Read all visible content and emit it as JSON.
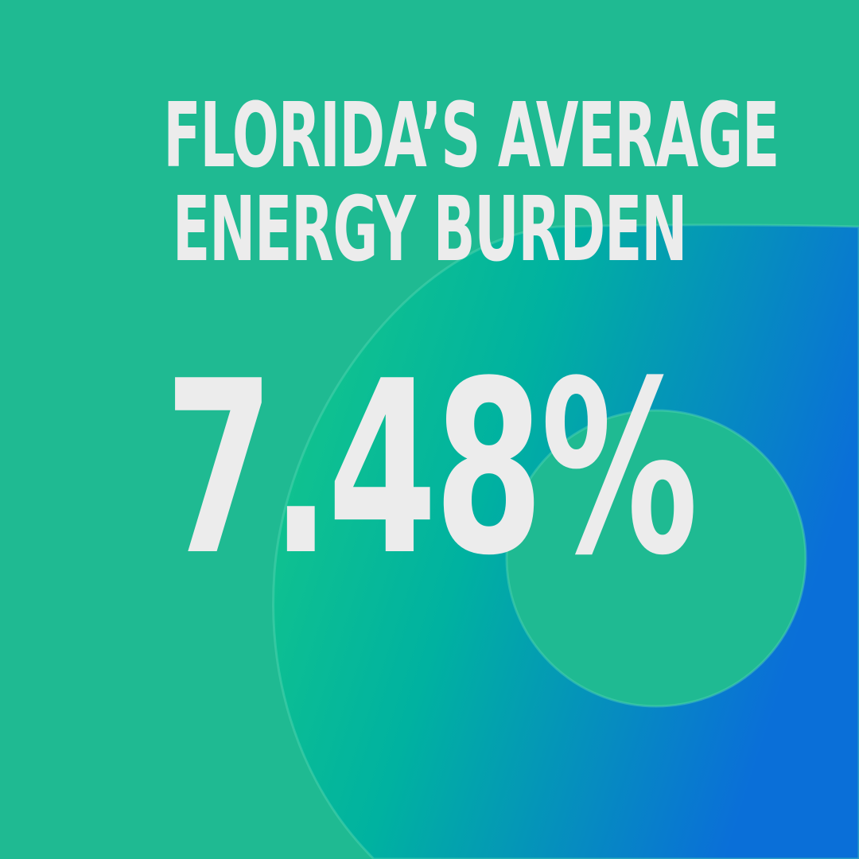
{
  "headline": {
    "line1": "FLORIDA’S AVERAGE",
    "line2": "ENERGY BURDEN"
  },
  "stat": {
    "value": "7.48%"
  },
  "colors": {
    "background": "#1fba92",
    "gradient_start": "#17c987",
    "gradient_mid": "#00b2a0",
    "gradient_end": "#0a6fd8",
    "text": "#ececec"
  }
}
